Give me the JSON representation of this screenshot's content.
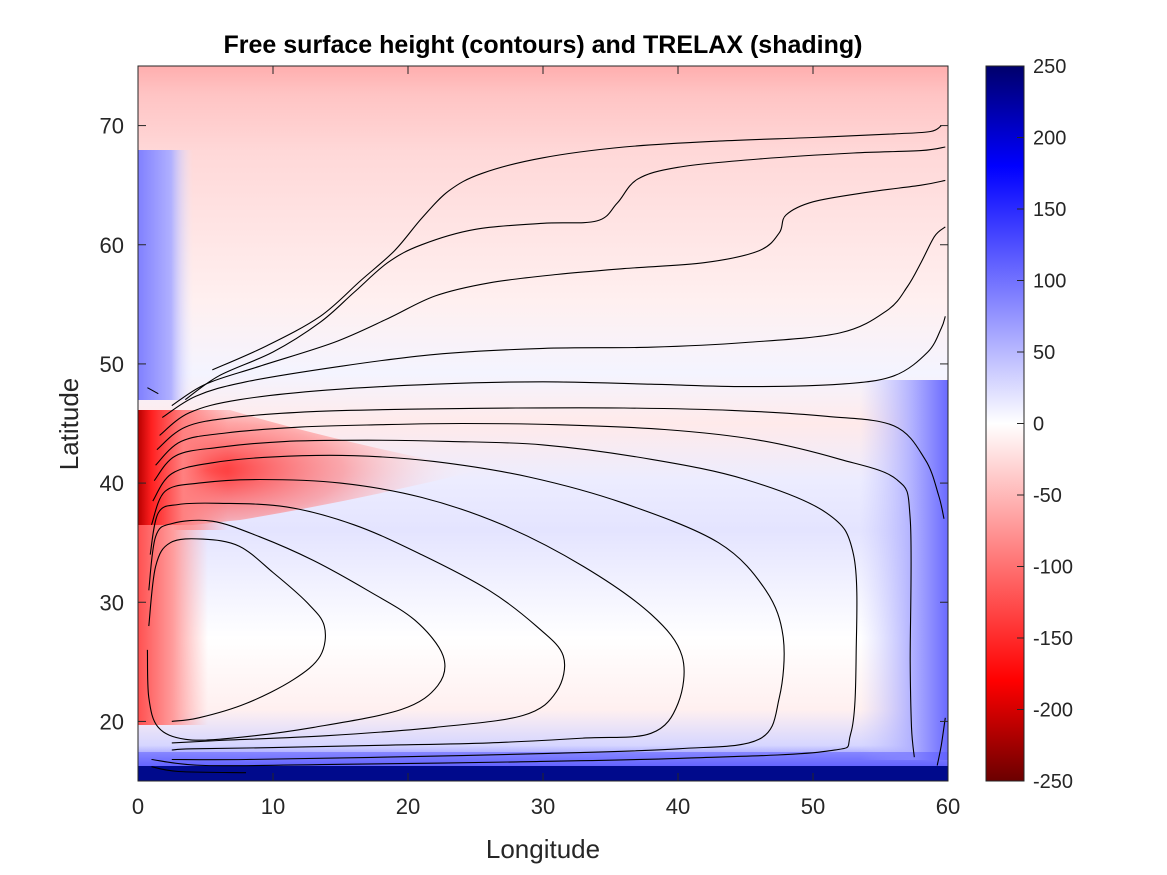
{
  "chart_data": {
    "type": "heatmap",
    "title": "Free surface height (contours) and TRELAX (shading)",
    "xlabel": "Longitude",
    "ylabel": "Latitude",
    "xlim": [
      0,
      60
    ],
    "ylim": [
      15,
      75
    ],
    "x_ticks": [
      0,
      10,
      20,
      30,
      40,
      50,
      60
    ],
    "y_ticks": [
      20,
      30,
      40,
      50,
      60,
      70
    ],
    "colorbar": {
      "range": [
        -250,
        250
      ],
      "ticks": [
        250,
        200,
        150,
        100,
        50,
        0,
        -50,
        -100,
        -150,
        -200,
        -250
      ],
      "colormap": [
        {
          "value": -250,
          "color": "#6b0000"
        },
        {
          "value": -180,
          "color": "#ff0000"
        },
        {
          "value": 0,
          "color": "#ffffff"
        },
        {
          "value": 180,
          "color": "#0000ff"
        },
        {
          "value": 250,
          "color": "#00006b"
        }
      ]
    },
    "contours": [
      {
        "level": "c1",
        "points": [
          [
            0.8,
            28
          ],
          [
            1.3,
            33
          ],
          [
            2.4,
            35
          ],
          [
            4.8,
            35.3
          ],
          [
            7.5,
            34.7
          ],
          [
            10,
            32.5
          ],
          [
            12.5,
            30
          ],
          [
            13.8,
            28
          ],
          [
            13.5,
            25.5
          ],
          [
            11.5,
            23.5
          ],
          [
            8,
            21.5
          ],
          [
            4.5,
            20.3
          ],
          [
            2.5,
            20
          ]
        ]
      },
      {
        "level": "c2",
        "points": [
          [
            0.8,
            31
          ],
          [
            1.3,
            35.5
          ],
          [
            2.5,
            36.6
          ],
          [
            5.5,
            36.8
          ],
          [
            9,
            35.5
          ],
          [
            13,
            33.5
          ],
          [
            17,
            31
          ],
          [
            20.5,
            28.5
          ],
          [
            22.6,
            25.5
          ],
          [
            22.2,
            23
          ],
          [
            19.5,
            21
          ],
          [
            13,
            19.5
          ],
          [
            7,
            18.6
          ],
          [
            3.5,
            18.5
          ],
          [
            1.5,
            19.5
          ],
          [
            0.8,
            22
          ],
          [
            0.7,
            26
          ]
        ]
      },
      {
        "level": "c3",
        "points": [
          [
            0.9,
            34
          ],
          [
            1.5,
            37.5
          ],
          [
            3,
            38.2
          ],
          [
            6,
            38.3
          ],
          [
            11,
            38
          ],
          [
            16,
            36.5
          ],
          [
            21,
            34
          ],
          [
            26,
            31
          ],
          [
            29.5,
            28
          ],
          [
            31.5,
            25.5
          ],
          [
            31,
            22.5
          ],
          [
            28.5,
            20.5
          ],
          [
            22,
            19.5
          ],
          [
            14,
            18.8
          ],
          [
            6,
            18.4
          ],
          [
            2.5,
            18.2
          ]
        ]
      },
      {
        "level": "c4",
        "points": [
          [
            1,
            36.5
          ],
          [
            2,
            39.3
          ],
          [
            4.5,
            40
          ],
          [
            9,
            40.3
          ],
          [
            15,
            40
          ],
          [
            21,
            38.8
          ],
          [
            27,
            36.5
          ],
          [
            33,
            33
          ],
          [
            38,
            29
          ],
          [
            40.3,
            25.5
          ],
          [
            40,
            21.5
          ],
          [
            38,
            19
          ],
          [
            33,
            18.6
          ],
          [
            26,
            18.2
          ],
          [
            18,
            18
          ],
          [
            10,
            17.8
          ],
          [
            4,
            17.7
          ],
          [
            2.5,
            17.6
          ]
        ]
      },
      {
        "level": "c5",
        "points": [
          [
            1.1,
            38.5
          ],
          [
            2.5,
            40.8
          ],
          [
            5.5,
            41.7
          ],
          [
            10,
            42.2
          ],
          [
            16,
            42.3
          ],
          [
            22,
            41.8
          ],
          [
            29,
            40.5
          ],
          [
            36,
            38.3
          ],
          [
            43,
            35
          ],
          [
            46.5,
            31
          ],
          [
            47.8,
            27
          ],
          [
            47.5,
            22
          ],
          [
            46,
            18.5
          ],
          [
            40,
            17.7
          ],
          [
            30,
            17.3
          ],
          [
            18,
            17
          ],
          [
            8,
            16.8
          ],
          [
            2.5,
            16.8
          ]
        ]
      },
      {
        "level": "c6",
        "points": [
          [
            1.2,
            40.2
          ],
          [
            2.8,
            42.3
          ],
          [
            6,
            43
          ],
          [
            11,
            43.5
          ],
          [
            17,
            43.6
          ],
          [
            23,
            43.5
          ],
          [
            30,
            43.2
          ],
          [
            38,
            42
          ],
          [
            45,
            40.3
          ],
          [
            51,
            37.5
          ],
          [
            53,
            34
          ],
          [
            53.2,
            26
          ],
          [
            52.8,
            19
          ],
          [
            51,
            17.5
          ],
          [
            40,
            16.9
          ],
          [
            28,
            16.6
          ],
          [
            15,
            16.4
          ],
          [
            5,
            16.3
          ],
          [
            1,
            16.8
          ]
        ]
      },
      {
        "level": "c7",
        "points": [
          [
            1.3,
            41.5
          ],
          [
            3.2,
            43.5
          ],
          [
            6.5,
            44.2
          ],
          [
            12,
            44.7
          ],
          [
            18,
            44.9
          ],
          [
            24,
            45
          ],
          [
            31,
            44.9
          ],
          [
            39,
            44.5
          ],
          [
            46,
            43.6
          ],
          [
            52,
            42
          ],
          [
            56.2,
            40.3
          ],
          [
            57.2,
            37
          ],
          [
            57.2,
            25
          ],
          [
            57.3,
            19.5
          ],
          [
            57.5,
            17
          ]
        ]
      },
      {
        "level": "c8",
        "points": [
          [
            1.4,
            42.8
          ],
          [
            3.5,
            44.7
          ],
          [
            7,
            45.5
          ],
          [
            13,
            46
          ],
          [
            20,
            46.2
          ],
          [
            28,
            46.3
          ],
          [
            36,
            46.3
          ],
          [
            44,
            46.1
          ],
          [
            51,
            45.6
          ],
          [
            56,
            44.8
          ],
          [
            58.3,
            42
          ],
          [
            59.3,
            39
          ],
          [
            59.7,
            37
          ]
        ]
      },
      {
        "level": "c9",
        "points": [
          [
            1.6,
            44
          ],
          [
            3.8,
            45.9
          ],
          [
            7.5,
            47
          ],
          [
            14,
            47.8
          ],
          [
            22,
            48.3
          ],
          [
            30,
            48.5
          ],
          [
            38,
            48.3
          ],
          [
            45,
            48.1
          ],
          [
            52,
            48.3
          ],
          [
            56,
            49
          ],
          [
            58.5,
            51
          ],
          [
            59.5,
            53
          ],
          [
            59.8,
            54
          ]
        ]
      },
      {
        "level": "c10",
        "points": [
          [
            1.8,
            45.5
          ],
          [
            4.3,
            47.3
          ],
          [
            8,
            48.5
          ],
          [
            15,
            49.8
          ],
          [
            22,
            50.8
          ],
          [
            30,
            51.3
          ],
          [
            38,
            51.4
          ],
          [
            45,
            51.8
          ],
          [
            52,
            52.6
          ],
          [
            55.5,
            54.5
          ],
          [
            57,
            56.5
          ],
          [
            58,
            58.5
          ],
          [
            59,
            60.7
          ],
          [
            59.8,
            61.5
          ]
        ]
      },
      {
        "level": "c11",
        "points": [
          [
            2.5,
            46.5
          ],
          [
            5,
            48.3
          ],
          [
            9,
            49.8
          ],
          [
            14.5,
            51.8
          ],
          [
            18.5,
            53.8
          ],
          [
            22,
            55.7
          ],
          [
            26,
            56.8
          ],
          [
            31,
            57.5
          ],
          [
            36,
            58
          ],
          [
            42,
            58.5
          ],
          [
            46,
            59.5
          ],
          [
            47.5,
            61
          ],
          [
            48,
            62.5
          ],
          [
            50,
            63.6
          ],
          [
            54,
            64.4
          ],
          [
            58,
            65
          ],
          [
            59.8,
            65.4
          ]
        ]
      },
      {
        "level": "c12",
        "points": [
          [
            3.5,
            47
          ],
          [
            6,
            49
          ],
          [
            10,
            51
          ],
          [
            13.5,
            53.5
          ],
          [
            16,
            56
          ],
          [
            18.5,
            58.5
          ],
          [
            21,
            60
          ],
          [
            25,
            61.3
          ],
          [
            30,
            61.8
          ],
          [
            34,
            62
          ],
          [
            35.5,
            63.5
          ],
          [
            37,
            65.5
          ],
          [
            40,
            66.5
          ],
          [
            46,
            67.2
          ],
          [
            53,
            67.7
          ],
          [
            58,
            67.9
          ],
          [
            59.8,
            68.2
          ]
        ]
      },
      {
        "level": "c13",
        "points": [
          [
            1.5,
            47.5
          ],
          [
            0.7,
            48
          ]
        ]
      },
      {
        "level": "c14",
        "points": [
          [
            5.5,
            49.5
          ],
          [
            9.5,
            51.5
          ],
          [
            13.5,
            54
          ],
          [
            16.5,
            57
          ],
          [
            19,
            59.5
          ],
          [
            21,
            62.2
          ],
          [
            23,
            64.5
          ],
          [
            25.5,
            66
          ],
          [
            30,
            67.3
          ],
          [
            36,
            68.2
          ],
          [
            43,
            68.7
          ],
          [
            50,
            69
          ],
          [
            56,
            69.3
          ],
          [
            58.7,
            69.5
          ],
          [
            59.5,
            70
          ]
        ]
      },
      {
        "level": "c15",
        "points": [
          [
            1,
            16.2
          ],
          [
            3,
            15.8
          ],
          [
            8,
            15.7
          ]
        ]
      },
      {
        "level": "c16",
        "points": [
          [
            59.2,
            16.3
          ],
          [
            59.5,
            18
          ],
          [
            59.8,
            20.3
          ]
        ]
      }
    ]
  }
}
